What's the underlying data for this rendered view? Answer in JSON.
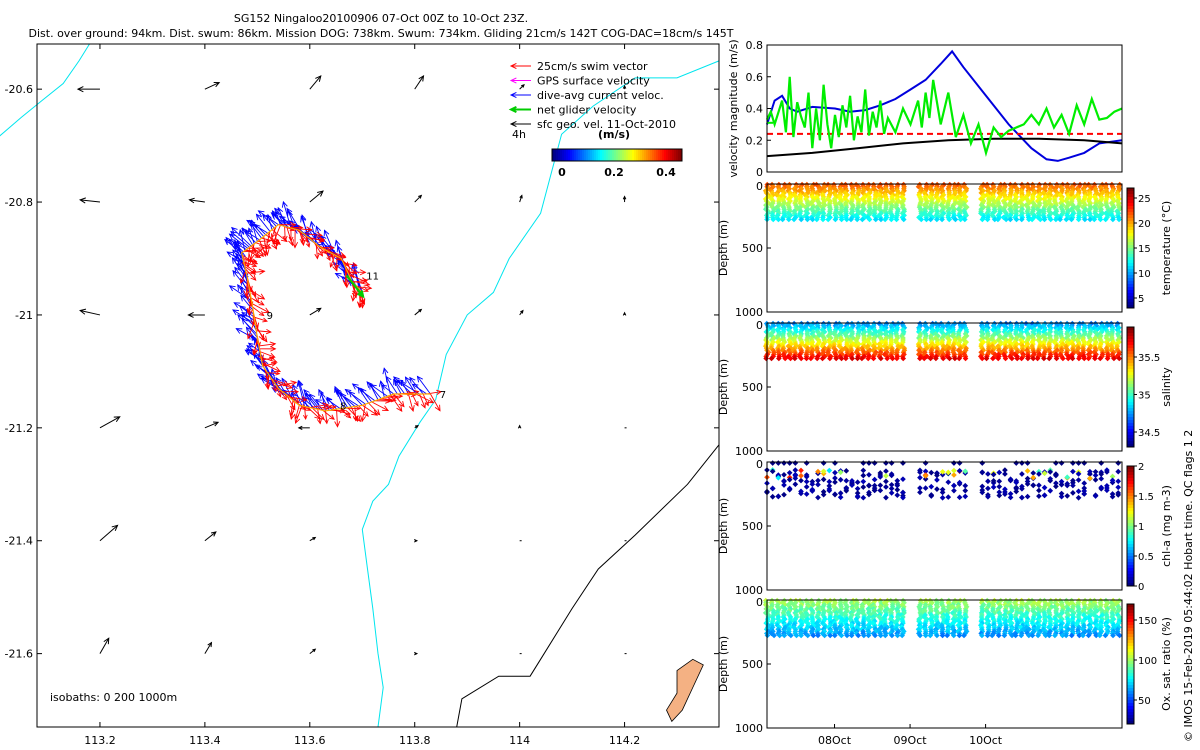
{
  "title": {
    "line1": "SG152 Ningaloo20100906 07-Oct 00Z to 10-Oct 23Z.",
    "line2": "Dist. over ground: 94km. Dist. swum: 86km. Mission DOG: 738km. Swum: 734km. Gliding 21cm/s 142T COG-DAC=18cm/s 145T"
  },
  "credit": "© IMOS 15-Feb-2019 05:44:02 Hobart time. QC flags 1  2",
  "colors": {
    "swim": "#ff0000",
    "gps": "#ff00ff",
    "dac": "#0000ff",
    "net": "#00cc00",
    "geo": "#000000",
    "coast": "#00e5ee",
    "isobath": "#000000",
    "island": "#f4b183",
    "speed_green": "#00ee00",
    "speed_blue": "#0000dd",
    "speed_red": "#ff0000"
  },
  "chart_data": [
    {
      "type": "scatter",
      "name": "map",
      "xlim": [
        113.08,
        114.38
      ],
      "ylim": [
        -21.73,
        -20.52
      ],
      "xticks": [
        113.2,
        113.4,
        113.6,
        113.8,
        114,
        114.2
      ],
      "xtick_labels": [
        "113.2",
        "113.4",
        "113.6",
        "113.8",
        "114",
        "114.2"
      ],
      "yticks": [
        -20.6,
        -20.8,
        -21,
        -21.2,
        -21.4,
        -21.6
      ],
      "ytick_labels": [
        "-20.6",
        "-20.8",
        "-21",
        "-21.2",
        "-21.4",
        "-21.6"
      ],
      "legend": [
        {
          "label": "25cm/s swim vector",
          "color_key": "swim"
        },
        {
          "label": "GPS surface velocity",
          "color_key": "gps"
        },
        {
          "label": "dive-avg current veloc.",
          "color_key": "dac"
        },
        {
          "label": "net glider velocity",
          "color_key": "net"
        },
        {
          "label": "sfc geo. vel. 11-Oct-2010",
          "color_key": "geo"
        }
      ],
      "time_step_label": "4h",
      "colorbar": {
        "label": "(m/s)",
        "ticks": [
          "0",
          "0.2",
          "0.4"
        ],
        "range": [
          0,
          0.5
        ]
      },
      "isobath_label": "isobaths: 0   200  1000m",
      "glider_track": [
        [
          113.83,
          -21.14
        ],
        [
          113.76,
          -21.14
        ],
        [
          113.7,
          -21.16
        ],
        [
          113.63,
          -21.17
        ],
        [
          113.58,
          -21.16
        ],
        [
          113.54,
          -21.13
        ],
        [
          113.51,
          -21.09
        ],
        [
          113.5,
          -21.04
        ],
        [
          113.49,
          -20.98
        ],
        [
          113.48,
          -20.93
        ],
        [
          113.47,
          -20.89
        ],
        [
          113.5,
          -20.87
        ],
        [
          113.54,
          -20.84
        ],
        [
          113.58,
          -20.85
        ],
        [
          113.62,
          -20.88
        ],
        [
          113.66,
          -20.9
        ],
        [
          113.68,
          -20.94
        ],
        [
          113.7,
          -20.96
        ]
      ],
      "day_labels": [
        {
          "text": "7",
          "lon": 113.84,
          "lat": -21.14
        },
        {
          "text": "8",
          "lon": 113.65,
          "lat": -21.16
        },
        {
          "text": "9",
          "lon": 113.51,
          "lat": -21.0
        },
        {
          "text": "11",
          "lon": 113.7,
          "lat": -20.93
        }
      ],
      "net_velocity_vector": {
        "lon": 113.67,
        "lat": -20.93,
        "u": 0.15,
        "v": -0.19
      },
      "geo_grid_lons": [
        113.2,
        113.4,
        113.6,
        113.8,
        114.0,
        114.2
      ],
      "geo_grid_lats": [
        -20.6,
        -20.8,
        -21.0,
        -21.2,
        -21.4,
        -21.6
      ],
      "geo_vectors": [
        [
          [
            -0.2,
            0.0
          ],
          [
            0.13,
            0.06
          ],
          [
            0.1,
            0.12
          ],
          [
            0.08,
            0.12
          ],
          [
            0.04,
            0.04
          ],
          [
            0.0,
            0.03
          ]
        ],
        [
          [
            -0.18,
            0.02
          ],
          [
            -0.14,
            0.02
          ],
          [
            0.12,
            0.1
          ],
          [
            0.06,
            0.06
          ],
          [
            0.02,
            0.06
          ],
          [
            0.0,
            0.05
          ]
        ],
        [
          [
            -0.18,
            0.04
          ],
          [
            -0.15,
            0.0
          ],
          [
            0.1,
            0.06
          ],
          [
            0.06,
            0.05
          ],
          [
            0.03,
            0.04
          ],
          [
            0.0,
            0.02
          ]
        ],
        [
          [
            0.18,
            0.1
          ],
          [
            0.12,
            0.05
          ],
          [
            -0.1,
            0.0
          ],
          [
            0.03,
            0.02
          ],
          [
            0.0,
            0.02
          ],
          [
            0.0,
            0.01
          ]
        ],
        [
          [
            0.16,
            0.14
          ],
          [
            0.1,
            0.08
          ],
          [
            0.05,
            0.03
          ],
          [
            0.02,
            0.0
          ],
          [
            0.01,
            0.0
          ],
          [
            0.0,
            0.0
          ]
        ],
        [
          [
            0.08,
            0.14
          ],
          [
            0.06,
            0.1
          ],
          [
            0.05,
            0.04
          ],
          [
            0.02,
            0.0
          ],
          [
            0.0,
            0.0
          ],
          [
            0.0,
            0.0
          ]
        ]
      ],
      "coastline_0m": [
        [
          113.0,
          -20.69
        ],
        [
          113.05,
          -20.65
        ],
        [
          113.09,
          -20.62
        ],
        [
          113.13,
          -20.59
        ],
        [
          113.16,
          -20.55
        ],
        [
          113.18,
          -20.52
        ]
      ],
      "coastline_200m": [
        [
          114.38,
          -20.55
        ],
        [
          114.3,
          -20.58
        ],
        [
          114.22,
          -20.58
        ],
        [
          114.14,
          -20.63
        ],
        [
          114.08,
          -20.68
        ],
        [
          114.06,
          -20.75
        ],
        [
          114.04,
          -20.82
        ],
        [
          113.98,
          -20.9
        ],
        [
          113.95,
          -20.96
        ],
        [
          113.9,
          -21.0
        ],
        [
          113.86,
          -21.07
        ],
        [
          113.84,
          -21.15
        ],
        [
          113.81,
          -21.19
        ],
        [
          113.77,
          -21.25
        ],
        [
          113.75,
          -21.3
        ],
        [
          113.72,
          -21.33
        ],
        [
          113.7,
          -21.38
        ],
        [
          113.71,
          -21.45
        ],
        [
          113.72,
          -21.52
        ],
        [
          113.73,
          -21.6
        ],
        [
          113.74,
          -21.66
        ],
        [
          113.73,
          -21.73
        ]
      ],
      "isobath_1000m": [
        [
          114.38,
          -21.23
        ],
        [
          114.32,
          -21.3
        ],
        [
          114.22,
          -21.39
        ],
        [
          114.15,
          -21.45
        ],
        [
          114.1,
          -21.52
        ],
        [
          114.04,
          -21.61
        ],
        [
          114.02,
          -21.64
        ],
        [
          113.96,
          -21.64
        ],
        [
          113.89,
          -21.68
        ],
        [
          113.88,
          -21.73
        ]
      ],
      "island": [
        [
          114.3,
          -21.63
        ],
        [
          114.33,
          -21.61
        ],
        [
          114.35,
          -21.62
        ],
        [
          114.33,
          -21.66
        ],
        [
          114.31,
          -21.7
        ],
        [
          114.29,
          -21.72
        ],
        [
          114.28,
          -21.7
        ],
        [
          114.3,
          -21.67
        ]
      ]
    },
    {
      "type": "line",
      "name": "velocity",
      "ylabel": "velocity magnitude (m/s)",
      "ylim": [
        0,
        0.8
      ],
      "yticks": [
        0,
        0.2,
        0.4,
        0.6,
        0.8
      ],
      "ytick_labels": [
        "0",
        "0.2",
        "0.4",
        "0.6",
        "0.8"
      ],
      "xlim": [
        0,
        4.7
      ],
      "series": [
        {
          "name": "dive-avg current",
          "color_key": "speed_blue",
          "x": [
            0,
            0.1,
            0.2,
            0.3,
            0.4,
            0.6,
            0.9,
            1.1,
            1.3,
            1.5,
            1.7,
            1.9,
            2.1,
            2.3,
            2.45,
            2.6,
            2.9,
            3.2,
            3.5,
            3.7,
            3.85,
            4.0,
            4.2,
            4.4,
            4.7
          ],
          "y": [
            0.3,
            0.45,
            0.48,
            0.4,
            0.38,
            0.41,
            0.4,
            0.38,
            0.39,
            0.42,
            0.46,
            0.52,
            0.58,
            0.68,
            0.76,
            0.66,
            0.48,
            0.3,
            0.15,
            0.08,
            0.07,
            0.09,
            0.12,
            0.18,
            0.2
          ]
        },
        {
          "name": "swim speed",
          "color_key": "speed_black",
          "x": [
            0,
            0.6,
            1.2,
            1.8,
            2.4,
            3.0,
            3.6,
            4.2,
            4.7
          ],
          "y": [
            0.1,
            0.12,
            0.15,
            0.18,
            0.2,
            0.21,
            0.21,
            0.2,
            0.18
          ]
        },
        {
          "name": "mean swim",
          "color_key": "speed_red",
          "x": [
            0,
            4.7
          ],
          "y": [
            0.24,
            0.24
          ]
        },
        {
          "name": "horizontal speed",
          "color_key": "speed_green",
          "x": [
            0,
            0.05,
            0.1,
            0.2,
            0.25,
            0.3,
            0.35,
            0.4,
            0.45,
            0.5,
            0.55,
            0.6,
            0.65,
            0.7,
            0.75,
            0.8,
            0.85,
            0.9,
            0.95,
            1.0,
            1.05,
            1.1,
            1.15,
            1.2,
            1.25,
            1.3,
            1.35,
            1.4,
            1.45,
            1.5,
            1.55,
            1.6,
            1.7,
            1.8,
            1.9,
            2.0,
            2.05,
            2.1,
            2.15,
            2.2,
            2.3,
            2.4,
            2.5,
            2.6,
            2.7,
            2.8,
            2.9,
            3.0,
            3.1,
            3.2,
            3.3,
            3.4,
            3.5,
            3.6,
            3.7,
            3.8,
            3.9,
            4.0,
            4.1,
            4.2,
            4.3,
            4.4,
            4.5,
            4.6,
            4.7
          ],
          "y": [
            0.33,
            0.38,
            0.3,
            0.45,
            0.25,
            0.6,
            0.22,
            0.44,
            0.35,
            0.28,
            0.5,
            0.15,
            0.4,
            0.2,
            0.55,
            0.3,
            0.15,
            0.36,
            0.22,
            0.42,
            0.28,
            0.48,
            0.2,
            0.35,
            0.25,
            0.52,
            0.23,
            0.38,
            0.28,
            0.45,
            0.24,
            0.34,
            0.25,
            0.4,
            0.3,
            0.45,
            0.28,
            0.5,
            0.34,
            0.58,
            0.3,
            0.5,
            0.22,
            0.36,
            0.18,
            0.3,
            0.12,
            0.28,
            0.22,
            0.26,
            0.28,
            0.3,
            0.36,
            0.3,
            0.4,
            0.28,
            0.36,
            0.24,
            0.42,
            0.3,
            0.46,
            0.33,
            0.34,
            0.38,
            0.4
          ]
        },
        {
          "name": "mean horizontal speed",
          "color_key": "speed_green",
          "x": [
            0,
            0.1
          ],
          "y": [
            0.31,
            0.31
          ]
        }
      ]
    },
    {
      "type": "scatter",
      "name": "temperature",
      "ylabel": "Depth (m)",
      "ylim": [
        0,
        1000
      ],
      "yticks": [
        "0",
        "500",
        "1000"
      ],
      "clabel": "temperature (°C)",
      "cticks": [
        "25",
        "20",
        "15",
        "10",
        "5"
      ],
      "crange": [
        3,
        27
      ],
      "profile_depth": 280,
      "profile_values_top": 26,
      "profile_values_bottom": 14
    },
    {
      "type": "scatter",
      "name": "salinity",
      "ylabel": "Depth (m)",
      "ylim": [
        0,
        1000
      ],
      "yticks": [
        "0",
        "500",
        "1000"
      ],
      "clabel": "salinity",
      "cticks": [
        "35.5",
        "35",
        "34.5"
      ],
      "crange": [
        34.3,
        35.9
      ],
      "profile_depth": 280,
      "profile_values_top": 34.6,
      "profile_values_bottom": 35.6
    },
    {
      "type": "scatter",
      "name": "chla",
      "ylabel": "Depth (m)",
      "ylim": [
        0,
        1000
      ],
      "yticks": [
        "0",
        "500",
        "1000"
      ],
      "clabel": "chl-a (mg m-3)",
      "cticks": [
        "2",
        "1.5",
        "1",
        "0.5",
        "0"
      ],
      "crange": [
        0,
        2
      ],
      "profile_depth": 280
    },
    {
      "type": "scatter",
      "name": "oxygen",
      "ylabel": "Depth (m)",
      "ylim": [
        0,
        1000
      ],
      "yticks": [
        "0",
        "500",
        "1000"
      ],
      "xtick_labels": [
        "08Oct",
        "09Oct",
        "10Oct"
      ],
      "xtick_days": [
        1,
        2,
        3
      ],
      "clabel": "Ox. sat. ratio (%)",
      "cticks": [
        "150",
        "100",
        "50"
      ],
      "crange": [
        20,
        170
      ],
      "profile_depth": 280
    }
  ]
}
